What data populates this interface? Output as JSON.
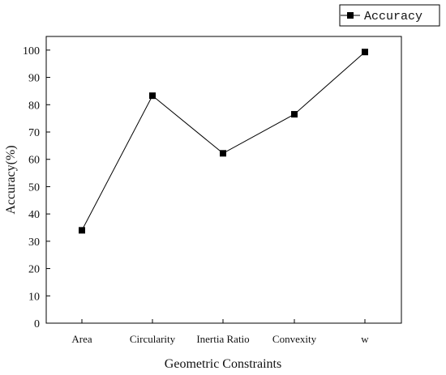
{
  "chart_data": {
    "type": "line",
    "categories": [
      "Area",
      "Circularity",
      "Inertia Ratio",
      "Convexity",
      "w"
    ],
    "series": [
      {
        "name": "Accuracy",
        "values": [
          34,
          83.3,
          62.2,
          76.5,
          99.3
        ]
      }
    ],
    "xlabel": "Geometric Constraints",
    "ylabel": "Accuracy(%)",
    "ylim": [
      0,
      105
    ],
    "yticks": [
      0,
      10,
      20,
      30,
      40,
      50,
      60,
      70,
      80,
      90,
      100
    ],
    "grid": false,
    "legend_position": "top-right",
    "colors": {
      "line": "#000000",
      "marker": "#000000",
      "axis": "#000000",
      "background": "#ffffff"
    }
  }
}
